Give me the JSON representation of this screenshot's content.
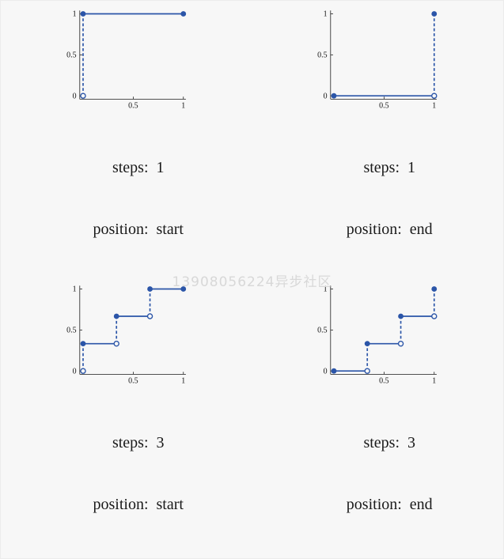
{
  "page": {
    "background": "#f7f7f7",
    "watermark": "13908056224异步社区"
  },
  "style": {
    "accent": "#2b55a8",
    "axis_color": "#1a1a1a",
    "watermark_color": "#d8d8d8",
    "open_point_fill": "#f7f7f7"
  },
  "chart_data": [
    {
      "type": "line",
      "subtype": "step-function",
      "steps": 1,
      "position": "start",
      "captions": [
        "steps:  1",
        "position:  start"
      ],
      "xlim": [
        0,
        1
      ],
      "ylim": [
        0,
        1
      ],
      "yticks": [
        {
          "value": 0,
          "label": "0"
        },
        {
          "value": 0.5,
          "label": "0.5"
        },
        {
          "value": 1,
          "label": "1"
        }
      ],
      "xticks": [
        {
          "value": 0.5,
          "label": "0.5"
        },
        {
          "value": 1,
          "label": "1"
        }
      ],
      "solid_segments": [
        [
          [
            0,
            1
          ],
          [
            1,
            1
          ]
        ]
      ],
      "dashed_segments": [
        [
          [
            0,
            0
          ],
          [
            0,
            1
          ]
        ]
      ],
      "filled_points": [
        [
          0,
          1
        ],
        [
          1,
          1
        ]
      ],
      "open_points": [
        [
          0,
          0
        ]
      ]
    },
    {
      "type": "line",
      "subtype": "step-function",
      "steps": 1,
      "position": "end",
      "captions": [
        "steps:  1",
        "position:  end"
      ],
      "xlim": [
        0,
        1
      ],
      "ylim": [
        0,
        1
      ],
      "yticks": [
        {
          "value": 0,
          "label": "0"
        },
        {
          "value": 0.5,
          "label": "0.5"
        },
        {
          "value": 1,
          "label": "1"
        }
      ],
      "xticks": [
        {
          "value": 0.5,
          "label": "0.5"
        },
        {
          "value": 1,
          "label": "1"
        }
      ],
      "solid_segments": [
        [
          [
            0,
            0
          ],
          [
            1,
            0
          ]
        ]
      ],
      "dashed_segments": [
        [
          [
            1,
            0
          ],
          [
            1,
            1
          ]
        ]
      ],
      "filled_points": [
        [
          0,
          0
        ],
        [
          1,
          1
        ]
      ],
      "open_points": [
        [
          1,
          0
        ]
      ]
    },
    {
      "type": "line",
      "subtype": "step-function",
      "steps": 3,
      "position": "start",
      "captions": [
        "steps:  3",
        "position:  start"
      ],
      "xlim": [
        0,
        1
      ],
      "ylim": [
        0,
        1
      ],
      "yticks": [
        {
          "value": 0,
          "label": "0"
        },
        {
          "value": 0.5,
          "label": "0.5"
        },
        {
          "value": 1,
          "label": "1"
        }
      ],
      "xticks": [
        {
          "value": 0.5,
          "label": "0.5"
        },
        {
          "value": 1,
          "label": "1"
        }
      ],
      "solid_segments": [
        [
          [
            0,
            0.333
          ],
          [
            0.333,
            0.333
          ]
        ],
        [
          [
            0.333,
            0.667
          ],
          [
            0.667,
            0.667
          ]
        ],
        [
          [
            0.667,
            1
          ],
          [
            1,
            1
          ]
        ]
      ],
      "dashed_segments": [
        [
          [
            0,
            0
          ],
          [
            0,
            0.333
          ]
        ],
        [
          [
            0.333,
            0.333
          ],
          [
            0.333,
            0.667
          ]
        ],
        [
          [
            0.667,
            0.667
          ],
          [
            0.667,
            1
          ]
        ]
      ],
      "filled_points": [
        [
          0,
          0.333
        ],
        [
          0.333,
          0.667
        ],
        [
          0.667,
          1
        ],
        [
          1,
          1
        ]
      ],
      "open_points": [
        [
          0,
          0
        ],
        [
          0.333,
          0.333
        ],
        [
          0.667,
          0.667
        ]
      ]
    },
    {
      "type": "line",
      "subtype": "step-function",
      "steps": 3,
      "position": "end",
      "captions": [
        "steps:  3",
        "position:  end"
      ],
      "xlim": [
        0,
        1
      ],
      "ylim": [
        0,
        1
      ],
      "yticks": [
        {
          "value": 0,
          "label": "0"
        },
        {
          "value": 0.5,
          "label": "0.5"
        },
        {
          "value": 1,
          "label": "1"
        }
      ],
      "xticks": [
        {
          "value": 0.5,
          "label": "0.5"
        },
        {
          "value": 1,
          "label": "1"
        }
      ],
      "solid_segments": [
        [
          [
            0,
            0
          ],
          [
            0.333,
            0
          ]
        ],
        [
          [
            0.333,
            0.333
          ],
          [
            0.667,
            0.333
          ]
        ],
        [
          [
            0.667,
            0.667
          ],
          [
            1,
            0.667
          ]
        ]
      ],
      "dashed_segments": [
        [
          [
            0.333,
            0
          ],
          [
            0.333,
            0.333
          ]
        ],
        [
          [
            0.667,
            0.333
          ],
          [
            0.667,
            0.667
          ]
        ],
        [
          [
            1,
            0.667
          ],
          [
            1,
            1
          ]
        ]
      ],
      "filled_points": [
        [
          0,
          0
        ],
        [
          0.333,
          0.333
        ],
        [
          0.667,
          0.667
        ],
        [
          1,
          1
        ]
      ],
      "open_points": [
        [
          0.333,
          0
        ],
        [
          0.667,
          0.333
        ],
        [
          1,
          0.667
        ]
      ]
    }
  ]
}
